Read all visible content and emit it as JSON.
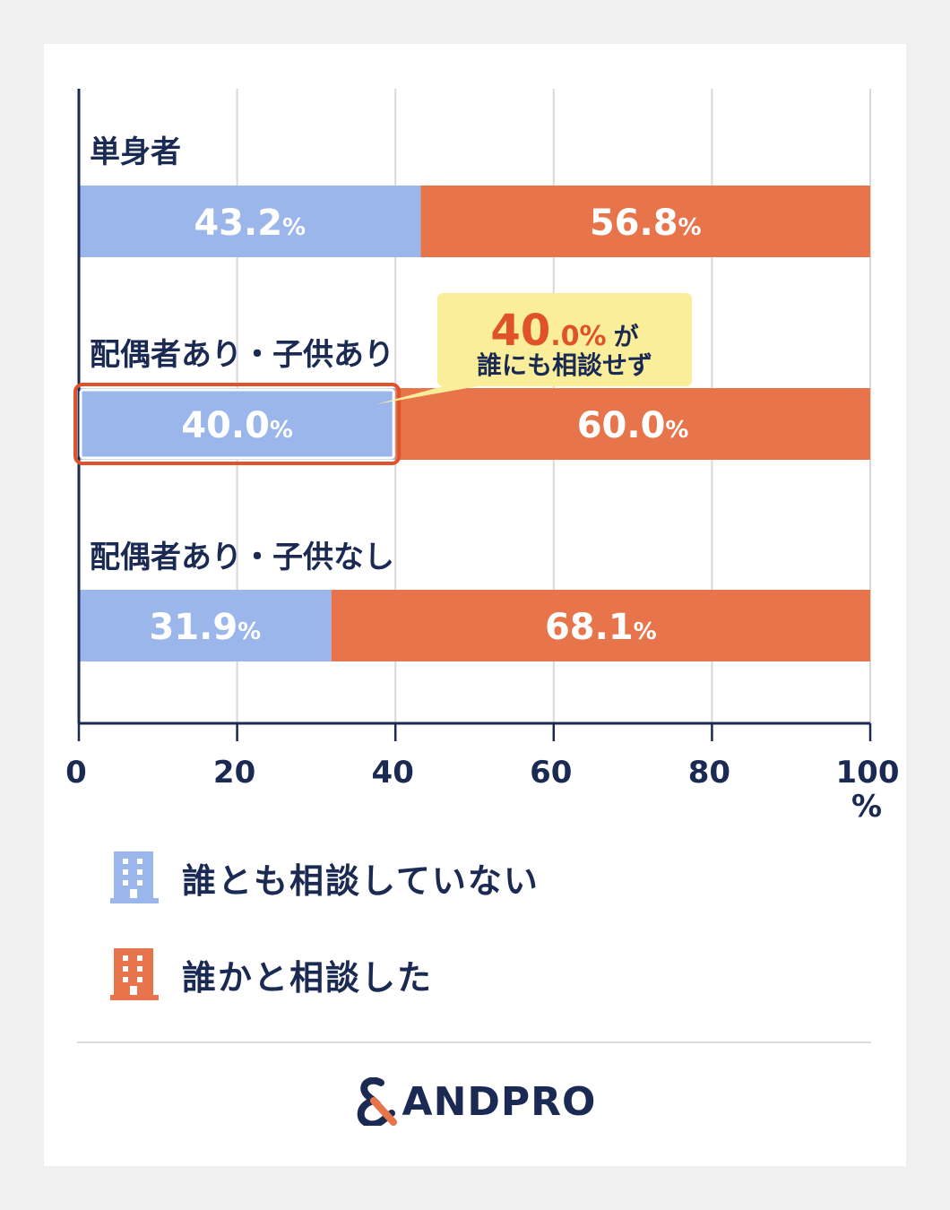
{
  "colors": {
    "no_one": "#9bb6ea",
    "someone": "#e8744c",
    "axis": "#1b2a52",
    "grid": "#d8d8d8",
    "highlight": "#e0522a",
    "callout_bg": "#fbee9a"
  },
  "chart_data": {
    "type": "bar",
    "orientation": "horizontal-stacked",
    "categories": [
      "単身者",
      "配偶者あり・子供あり",
      "配偶者あり・子供なし"
    ],
    "series": [
      {
        "name": "誰とも相談していない",
        "values": [
          43.2,
          40.0,
          31.9
        ]
      },
      {
        "name": "誰かと相談した",
        "values": [
          56.8,
          60.0,
          68.1
        ]
      }
    ],
    "xlim": [
      0,
      100
    ],
    "xticks": [
      "0",
      "20",
      "40",
      "60",
      "80",
      "100"
    ],
    "x_unit": "%",
    "grid": true,
    "legend_position": "bottom-left",
    "highlight": {
      "category_index": 1,
      "series_index": 0
    },
    "annotation": {
      "value": "40.0%",
      "suffix": "が",
      "line2": "誰にも相談せず"
    }
  },
  "legend": {
    "items": [
      {
        "label": "誰とも相談していない",
        "icon": "building-icon",
        "color": "#9bb6ea"
      },
      {
        "label": "誰かと相談した",
        "icon": "building-icon",
        "color": "#e8744c"
      }
    ]
  },
  "logo": {
    "text": "ANDPRO",
    "mark": "ampersand-logo-icon"
  }
}
